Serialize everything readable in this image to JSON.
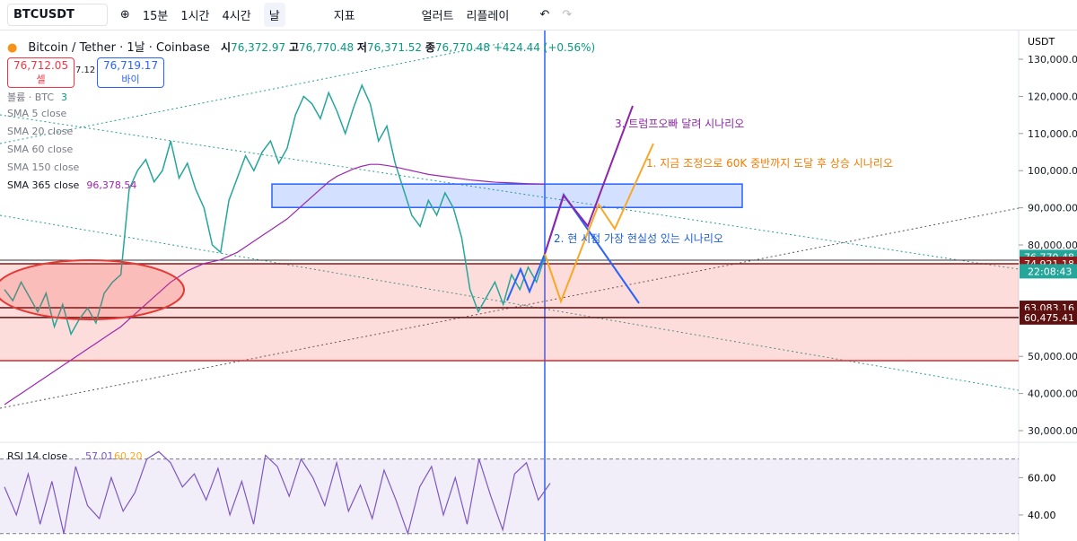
{
  "toolbar": {
    "symbol": "BTCUSDT",
    "intervals": [
      "15분",
      "1시간",
      "4시간",
      "날"
    ],
    "indicators": "지표",
    "alert": "얼러트",
    "replay": "리플레이"
  },
  "legend": {
    "title": "Bitcoin / Tether · 1날 · Coinbase",
    "ohlc": [
      {
        "label": "시",
        "value": "76,372.97"
      },
      {
        "label": "고",
        "value": "76,770.48"
      },
      {
        "label": "저",
        "value": "76,371.52"
      },
      {
        "label": "종",
        "value": "76,770.48"
      }
    ],
    "change": "+424.44 (+0.56%)",
    "sell_price": "76,712.05",
    "sell": "셀",
    "spread": "7.12",
    "buy_price": "76,719.17",
    "buy": "바이",
    "indicators": [
      {
        "name": "볼륨 · BTC",
        "value": "3"
      },
      {
        "name": "SMA 5 close"
      },
      {
        "name": "SMA 20 close"
      },
      {
        "name": "SMA 60 close"
      },
      {
        "name": "SMA 150 close"
      },
      {
        "name": "SMA 365 close",
        "value": "96,378.54"
      }
    ]
  },
  "chart_data": [
    {
      "type": "line",
      "currency": "USDT",
      "ylim": [
        27100,
        137500
      ],
      "yticks": [
        {
          "value": 130000,
          "label": "130,000.00"
        },
        {
          "value": 120000,
          "label": "120,000.00"
        },
        {
          "value": 110000,
          "label": "110,000.00"
        },
        {
          "value": 100000,
          "label": "100,000.00"
        },
        {
          "value": 90000,
          "label": "90,000.00"
        },
        {
          "value": 80000,
          "label": "80,000.00"
        },
        {
          "value": 50000,
          "label": "50,000.00"
        },
        {
          "value": 40000,
          "label": "40,000.00"
        },
        {
          "value": 30000,
          "label": "30,000.00"
        }
      ],
      "series": [
        {
          "color": "#26a69a",
          "values": [
            68000,
            65000,
            70000,
            66000,
            62000,
            67000,
            58000,
            64000,
            56000,
            60000,
            63000,
            59000,
            67000,
            70000,
            72000,
            95000,
            100000,
            103000,
            97000,
            100000,
            108000,
            98000,
            102000,
            95000,
            90000,
            80000,
            78000,
            92000,
            98000,
            104000,
            100000,
            105000,
            108000,
            102000,
            106000,
            115000,
            120000,
            118000,
            114000,
            121000,
            116000,
            110000,
            117000,
            123000,
            118000,
            108000,
            112000,
            102000,
            95000,
            88000,
            85000,
            92000,
            88000,
            94000,
            90000,
            82000,
            68000,
            62000,
            66000,
            70000,
            64000,
            72000,
            68000,
            74000,
            70000,
            76770.48
          ]
        },
        {
          "color": "#9c27b0",
          "values": [
            37000,
            38500,
            40000,
            41500,
            43000,
            44500,
            46000,
            47500,
            49000,
            50500,
            52000,
            53500,
            55000,
            56500,
            58000,
            60000,
            62000,
            64000,
            66000,
            68000,
            70000,
            71500,
            73000,
            74000,
            75000,
            75500,
            76000,
            77000,
            78000,
            79500,
            81000,
            82500,
            84000,
            85500,
            87000,
            89000,
            91000,
            93000,
            95000,
            97000,
            98500,
            99500,
            100500,
            101200,
            101700,
            101700,
            101400,
            101000,
            100500,
            100000,
            99500,
            99000,
            98700,
            98400,
            98100,
            97800,
            97500,
            97300,
            97100,
            96900,
            96800,
            96700,
            96600,
            96500,
            96450,
            96378.54
          ]
        }
      ],
      "price_labels": [
        {
          "value": 76770.48,
          "label": "76,770.48",
          "color": "#26a69a"
        },
        {
          "value": 74921.18,
          "label": "74,921.18",
          "color": "#8b1a1a"
        },
        {
          "value": 63083.16,
          "label": "63,083.16",
          "color": "#5d1010"
        },
        {
          "value": 60475.41,
          "label": "60,475.41",
          "color": "#5d1010"
        }
      ],
      "countdown": "22:08:43",
      "zone": [
        74921.18,
        48840
      ],
      "box": [
        96400,
        90100
      ],
      "annotations": [
        {
          "text": "3. 트럼프오빠 달려 시나리오",
          "color": "#8e24aa"
        },
        {
          "text": "1. 지금 조정으로 60K 중반까지 도달 후 상승 시나리오",
          "color": "#f57c00"
        },
        {
          "text": "2. 현 시점 가장 현실성 있는 시나리오",
          "color": "#1e5fd6"
        }
      ]
    },
    {
      "type": "line",
      "title": "RSI 14 close",
      "readings": [
        "57.01",
        "60.20"
      ],
      "color": "#7e57c2",
      "ylim": [
        26,
        78
      ],
      "yticks": [
        {
          "value": 60,
          "label": "60.00"
        },
        {
          "value": 40,
          "label": "40.00"
        }
      ],
      "bands": [
        70,
        30
      ],
      "values": [
        55,
        40,
        62,
        35,
        58,
        30,
        66,
        45,
        38,
        60,
        42,
        52,
        70,
        74,
        68,
        55,
        62,
        48,
        65,
        40,
        58,
        35,
        72,
        66,
        50,
        70,
        60,
        45,
        68,
        42,
        56,
        38,
        64,
        48,
        30,
        55,
        66,
        40,
        60,
        35,
        70,
        50,
        32,
        62,
        68,
        48,
        57.01
      ]
    }
  ]
}
